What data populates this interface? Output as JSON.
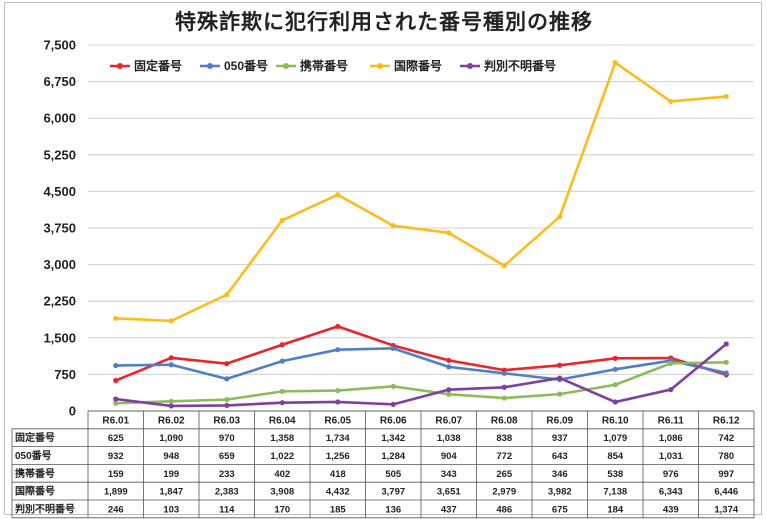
{
  "chart_data": {
    "type": "line",
    "title": "特殊詐欺に犯行利用された番号種別の推移",
    "categories": [
      "R6.01",
      "R6.02",
      "R6.03",
      "R6.04",
      "R6.05",
      "R6.06",
      "R6.07",
      "R6.08",
      "R6.09",
      "R6.10",
      "R6.11",
      "R6.12"
    ],
    "ylim": [
      0,
      7500
    ],
    "yticks": [
      "0",
      "750",
      "1,500",
      "2,250",
      "3,000",
      "3,750",
      "4,500",
      "5,250",
      "6,000",
      "6,750",
      "7,500"
    ],
    "grid": true,
    "legend_position": "top-left",
    "series": [
      {
        "name": "固定番号",
        "color": "#e8262a",
        "values": [
          625,
          1090,
          970,
          1358,
          1734,
          1342,
          1038,
          838,
          937,
          1079,
          1086,
          742
        ],
        "labels": [
          "625",
          "1,090",
          "970",
          "1,358",
          "1,734",
          "1,342",
          "1,038",
          "838",
          "937",
          "1,079",
          "1,086",
          "742"
        ]
      },
      {
        "name": "050番号",
        "color": "#4f7fc4",
        "values": [
          932,
          948,
          659,
          1022,
          1256,
          1284,
          904,
          772,
          643,
          854,
          1031,
          780
        ],
        "labels": [
          "932",
          "948",
          "659",
          "1,022",
          "1,256",
          "1,284",
          "904",
          "772",
          "643",
          "854",
          "1,031",
          "780"
        ]
      },
      {
        "name": "携帯番号",
        "color": "#8cbc58",
        "values": [
          159,
          199,
          233,
          402,
          418,
          505,
          343,
          265,
          346,
          538,
          976,
          997
        ],
        "labels": [
          "159",
          "199",
          "233",
          "402",
          "418",
          "505",
          "343",
          "265",
          "346",
          "538",
          "976",
          "997"
        ]
      },
      {
        "name": "国際番号",
        "color": "#fbbd1c",
        "values": [
          1899,
          1847,
          2383,
          3908,
          4432,
          3797,
          3651,
          2979,
          3982,
          7138,
          6343,
          6446
        ],
        "labels": [
          "1,899",
          "1,847",
          "2,383",
          "3,908",
          "4,432",
          "3,797",
          "3,651",
          "2,979",
          "3,982",
          "7,138",
          "6,343",
          "6,446"
        ]
      },
      {
        "name": "判別不明番号",
        "color": "#7e3fa0",
        "values": [
          246,
          103,
          114,
          170,
          185,
          136,
          437,
          486,
          675,
          184,
          439,
          1374
        ],
        "labels": [
          "246",
          "103",
          "114",
          "170",
          "185",
          "136",
          "437",
          "486",
          "675",
          "184",
          "439",
          "1,374"
        ]
      }
    ]
  }
}
